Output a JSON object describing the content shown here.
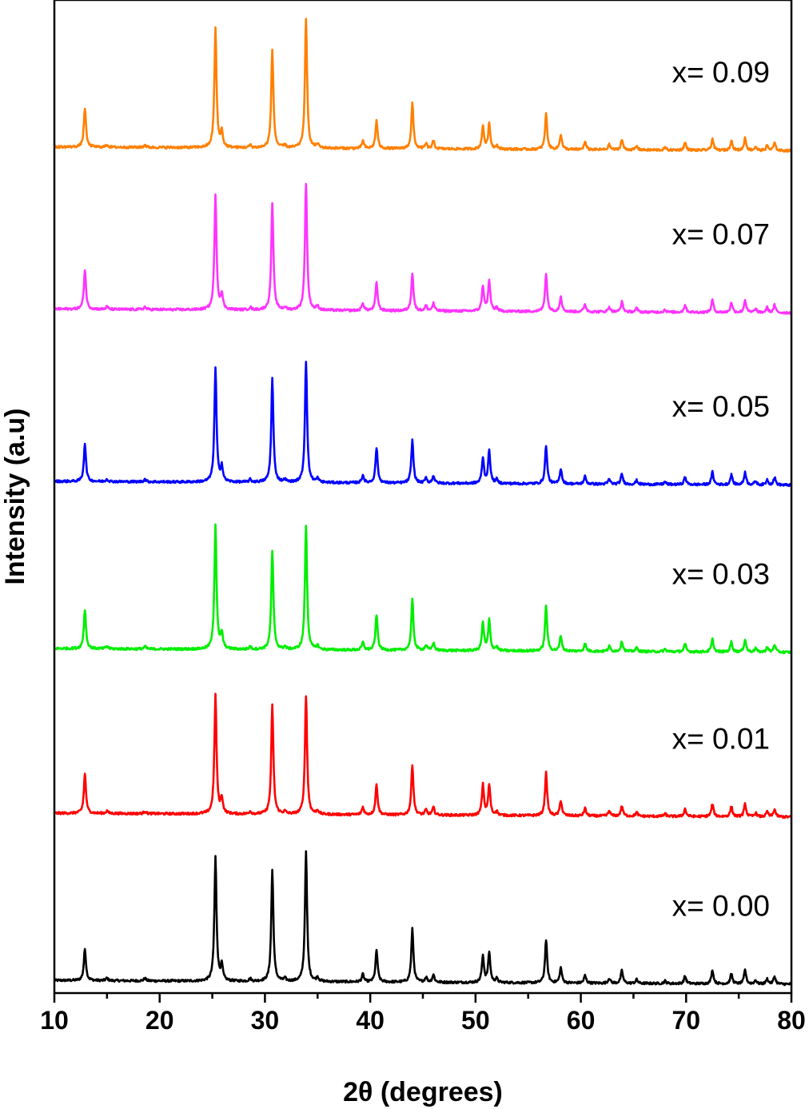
{
  "chart_data": {
    "type": "line",
    "title": "",
    "xlabel": "2θ (degrees)",
    "ylabel": "Intensity (a.u)",
    "xlim": [
      10,
      80
    ],
    "xticks": [
      10,
      20,
      30,
      40,
      50,
      60,
      70,
      80
    ],
    "x_minor_step": 5,
    "yticks_shown": false,
    "grid": false,
    "legend": "none (series labeled inline above each trace)",
    "stacked_offset": true,
    "peak_width_deg": 0.12,
    "peaks": [
      {
        "pos": 12.9,
        "heights": [
          1.25,
          1.55,
          1.55,
          1.5,
          1.55,
          1.55
        ]
      },
      {
        "pos": 15.0,
        "heights": [
          0.1,
          0.1,
          0.1,
          0.1,
          0.1,
          0.1
        ]
      },
      {
        "pos": 18.6,
        "heights": [
          0.1,
          0.1,
          0.1,
          0.1,
          0.1,
          0.1
        ]
      },
      {
        "pos": 25.3,
        "heights": [
          4.9,
          4.7,
          4.9,
          4.5,
          4.5,
          4.7
        ]
      },
      {
        "pos": 25.9,
        "heights": [
          0.6,
          0.6,
          0.6,
          0.6,
          0.6,
          0.6
        ]
      },
      {
        "pos": 28.6,
        "heights": [
          0.1,
          0.1,
          0.1,
          0.1,
          0.1,
          0.1
        ]
      },
      {
        "pos": 30.7,
        "heights": [
          4.4,
          4.3,
          3.9,
          4.1,
          4.2,
          3.9
        ]
      },
      {
        "pos": 31.9,
        "heights": [
          0.1,
          0.1,
          0.1,
          0.1,
          0.1,
          0.1
        ]
      },
      {
        "pos": 33.9,
        "heights": [
          5.1,
          4.7,
          4.9,
          4.8,
          5.0,
          5.1
        ]
      },
      {
        "pos": 35.0,
        "heights": [
          0.15,
          0.15,
          0.15,
          0.15,
          0.15,
          0.15
        ]
      },
      {
        "pos": 39.3,
        "heights": [
          0.3,
          0.3,
          0.3,
          0.3,
          0.3,
          0.3
        ]
      },
      {
        "pos": 40.6,
        "heights": [
          1.25,
          1.2,
          1.4,
          1.4,
          1.1,
          1.1
        ]
      },
      {
        "pos": 44.0,
        "heights": [
          2.1,
          2.0,
          2.0,
          1.7,
          1.5,
          1.8
        ]
      },
      {
        "pos": 45.3,
        "heights": [
          0.2,
          0.2,
          0.2,
          0.2,
          0.2,
          0.2
        ]
      },
      {
        "pos": 46.0,
        "heights": [
          0.3,
          0.3,
          0.3,
          0.3,
          0.3,
          0.3
        ]
      },
      {
        "pos": 50.7,
        "heights": [
          1.05,
          1.2,
          1.1,
          1.0,
          1.0,
          0.9
        ]
      },
      {
        "pos": 51.3,
        "heights": [
          1.2,
          1.2,
          1.2,
          1.3,
          1.2,
          1.0
        ]
      },
      {
        "pos": 52.0,
        "heights": [
          0.15,
          0.15,
          0.15,
          0.15,
          0.15,
          0.15
        ]
      },
      {
        "pos": 56.7,
        "heights": [
          1.7,
          1.7,
          1.8,
          1.5,
          1.5,
          1.4
        ]
      },
      {
        "pos": 58.1,
        "heights": [
          0.6,
          0.6,
          0.6,
          0.6,
          0.6,
          0.6
        ]
      },
      {
        "pos": 60.4,
        "heights": [
          0.3,
          0.3,
          0.3,
          0.3,
          0.3,
          0.3
        ]
      },
      {
        "pos": 62.7,
        "heights": [
          0.2,
          0.2,
          0.2,
          0.2,
          0.2,
          0.2
        ]
      },
      {
        "pos": 63.9,
        "heights": [
          0.5,
          0.4,
          0.4,
          0.4,
          0.4,
          0.4
        ]
      },
      {
        "pos": 65.3,
        "heights": [
          0.15,
          0.15,
          0.15,
          0.15,
          0.15,
          0.15
        ]
      },
      {
        "pos": 68.0,
        "heights": [
          0.1,
          0.1,
          0.1,
          0.1,
          0.1,
          0.1
        ]
      },
      {
        "pos": 69.9,
        "heights": [
          0.3,
          0.3,
          0.3,
          0.3,
          0.3,
          0.3
        ]
      },
      {
        "pos": 72.5,
        "heights": [
          0.55,
          0.5,
          0.5,
          0.5,
          0.5,
          0.45
        ]
      },
      {
        "pos": 74.3,
        "heights": [
          0.4,
          0.4,
          0.4,
          0.4,
          0.4,
          0.4
        ]
      },
      {
        "pos": 75.6,
        "heights": [
          0.55,
          0.5,
          0.5,
          0.5,
          0.5,
          0.5
        ]
      },
      {
        "pos": 76.6,
        "heights": [
          0.15,
          0.15,
          0.15,
          0.15,
          0.15,
          0.15
        ]
      },
      {
        "pos": 77.7,
        "heights": [
          0.2,
          0.2,
          0.2,
          0.2,
          0.2,
          0.2
        ]
      },
      {
        "pos": 78.4,
        "heights": [
          0.3,
          0.3,
          0.3,
          0.3,
          0.3,
          0.3
        ]
      }
    ],
    "series": [
      {
        "name": "x= 0.00",
        "color": "#000000",
        "baseline": 0.0,
        "tilt": -0.15
      },
      {
        "name": "x= 0.01",
        "color": "#ff0000",
        "baseline": 6.6,
        "tilt": -0.15
      },
      {
        "name": "x= 0.03",
        "color": "#00ee00",
        "baseline": 13.1,
        "tilt": -0.15
      },
      {
        "name": "x= 0.05",
        "color": "#0000ff",
        "baseline": 19.7,
        "tilt": -0.15
      },
      {
        "name": "x= 0.07",
        "color": "#ff33ff",
        "baseline": 26.5,
        "tilt": -0.15
      },
      {
        "name": "x= 0.09",
        "color": "#ff8000",
        "baseline": 32.9,
        "tilt": -0.15
      }
    ]
  }
}
